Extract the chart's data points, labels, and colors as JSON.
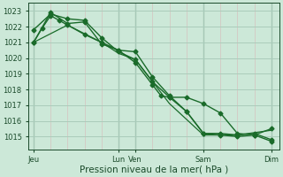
{
  "background_color": "#cce8d8",
  "grid_color": "#aaccbb",
  "line_color": "#1a6b2a",
  "text_color": "#1a4a2a",
  "xlabel_text": "Pression niveau de la mer( hPa )",
  "x_tick_labels": [
    "Jeu",
    "Lun",
    "Ven",
    "Sam",
    "Dim"
  ],
  "x_tick_positions": [
    0,
    5,
    6,
    10,
    14
  ],
  "ylim": [
    1014.2,
    1023.5
  ],
  "yticks": [
    1015,
    1016,
    1017,
    1018,
    1019,
    1020,
    1021,
    1022,
    1023
  ],
  "xlim": [
    -0.3,
    14.5
  ],
  "series": [
    {
      "x": [
        0,
        0.5,
        1,
        1.5,
        2,
        3,
        4,
        5,
        6,
        7,
        7.5,
        8,
        9,
        10,
        11,
        12,
        13,
        14
      ],
      "y": [
        1021.0,
        1021.9,
        1022.7,
        1022.4,
        1022.1,
        1021.5,
        1021.0,
        1020.5,
        1019.7,
        1018.3,
        1017.6,
        1017.5,
        1017.5,
        1017.1,
        1016.5,
        1015.2,
        1015.1,
        1014.7
      ],
      "marker": "D",
      "markersize": 2.5,
      "linewidth": 1.0
    },
    {
      "x": [
        0,
        1,
        2,
        3,
        4,
        5,
        6,
        7,
        8,
        9,
        10,
        11,
        12,
        13,
        14
      ],
      "y": [
        1021.8,
        1022.8,
        1022.5,
        1022.4,
        1021.3,
        1020.4,
        1019.9,
        1018.5,
        1017.5,
        1016.6,
        1015.2,
        1015.2,
        1015.1,
        1015.2,
        1014.8
      ],
      "marker": "D",
      "markersize": 2.5,
      "linewidth": 1.0
    },
    {
      "x": [
        0,
        1,
        2,
        3,
        4,
        5,
        6,
        7,
        8,
        9,
        10,
        11,
        12,
        13,
        14
      ],
      "y": [
        1021.0,
        1022.9,
        1022.2,
        1022.3,
        1020.9,
        1020.5,
        1020.4,
        1018.8,
        1017.6,
        1016.6,
        1015.2,
        1015.1,
        1015.0,
        1015.1,
        1015.5
      ],
      "marker": "D",
      "markersize": 2.5,
      "linewidth": 1.0
    },
    {
      "x": [
        0,
        2,
        4,
        5,
        6,
        8,
        10,
        12,
        14
      ],
      "y": [
        1021.0,
        1022.1,
        1021.0,
        1020.3,
        1019.9,
        1017.1,
        1015.1,
        1015.1,
        1015.4
      ],
      "marker": null,
      "markersize": 0,
      "linewidth": 0.9
    }
  ],
  "figsize": [
    3.2,
    2.0
  ],
  "dpi": 100,
  "tick_fontsize": 6,
  "xlabel_fontsize": 7.5
}
